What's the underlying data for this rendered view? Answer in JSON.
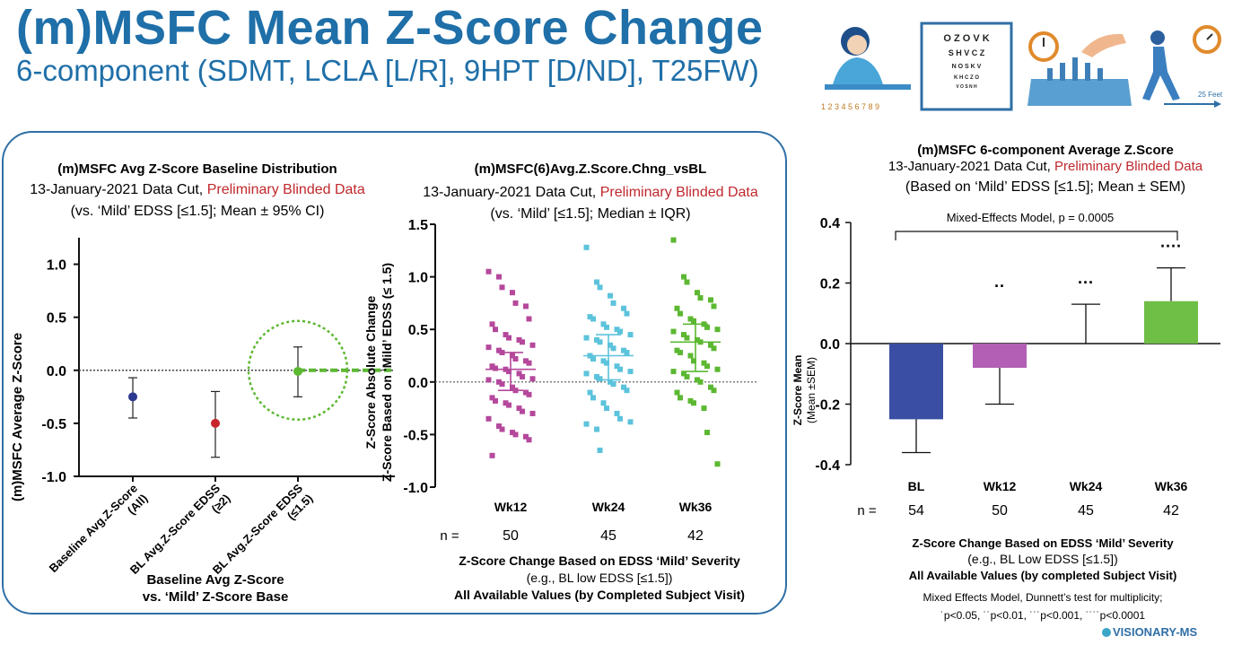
{
  "header": {
    "title": "(m)MSFC Mean Z-Score Change",
    "subtitle": "6-component (SDMT, LCLA [L/R], 9HPT [D/ND], T25FW)"
  },
  "illustration": {
    "eye_chart_rows": [
      "O Z O V K",
      "S H V C Z",
      "N O S K V",
      "K H C Z O",
      "V O S N H"
    ],
    "walk_label": "25 Feet",
    "digit_row": "1 2 3 4 5 6 7 8 9"
  },
  "logo": {
    "text": "VISIONARY-MS"
  },
  "colors": {
    "accent": "#1f6fa8",
    "red_text": "#c0282d",
    "navy": "#2b3990",
    "red": "#c8242c",
    "magenta": "#b5489c",
    "cyan": "#5cc3dc",
    "green": "#5cb832",
    "bar_blue": "#3a4fa3",
    "bar_magenta": "#b25fb5",
    "bar_green": "#6fbe45"
  },
  "chart_data": [
    {
      "id": "baseline",
      "type": "scatter",
      "title": "(m)MSFC Avg Z-Score Baseline Distribution",
      "subtitle_prefix": "13-January-2021 Data Cut, ",
      "subtitle_red": "Preliminary Blinded Data",
      "subtitle2": "(vs. ‘Mild’ EDSS [≤1.5]; Mean ± 95% CI)",
      "ylabel": "(m)MSFC Average Z-Score",
      "xlabel1": "Baseline Avg Z-Score",
      "xlabel2": "vs. ‘Mild’ Z-Score Base",
      "ylim": [
        -1.0,
        1.25
      ],
      "yticks": [
        "1.0",
        "0.5",
        "0.0",
        "-0.5",
        "-1.0"
      ],
      "categories": [
        "Baseline Avg.Z-Score (All)",
        "BL Avg.Z-Score EDSS (≥2)",
        "BL Avg.Z-Score EDSS (≤1.5)"
      ],
      "mean": [
        -0.25,
        -0.5,
        -0.01
      ],
      "ci_low": [
        -0.45,
        -0.82,
        -0.25
      ],
      "ci_high": [
        -0.07,
        -0.2,
        0.22
      ],
      "colors": [
        "#2b3990",
        "#c8242c",
        "#5cb832"
      ]
    },
    {
      "id": "change",
      "type": "scatter",
      "title": "(m)MSFC(6)Avg.Z.Score.Chng_vsBL",
      "subtitle_prefix": "13-January-2021 Data Cut, ",
      "subtitle_red": "Preliminary Blinded Data",
      "subtitle2": "(vs. ‘Mild’ [≤1.5]; Median ± IQR)",
      "ylabel1": "Z-Score Absolute Change",
      "ylabel2": "Z-Score Based on ‘Mild’ EDSS (≤ 1.5)",
      "xlabel1": "Z-Score Change Based on EDSS ‘Mild’ Severity",
      "xlabel2": "(e.g., BL low EDSS [≤1.5])",
      "xlabel3": "All Available Values (by Completed Subject Visit)",
      "ylim": [
        -1.0,
        1.5
      ],
      "yticks": [
        "1.5",
        "1.0",
        "0.5",
        "0.0",
        "-0.5",
        "-1.0"
      ],
      "categories": [
        "Wk12",
        "Wk24",
        "Wk36"
      ],
      "n_label": "n =",
      "n": [
        "50",
        "45",
        "42"
      ],
      "median": [
        0.12,
        0.25,
        0.38
      ],
      "q1": [
        -0.08,
        0.02,
        0.1
      ],
      "q3": [
        0.28,
        0.45,
        0.55
      ],
      "points": [
        [
          1.05,
          1.0,
          0.9,
          0.85,
          0.75,
          0.72,
          0.6,
          0.55,
          0.5,
          0.45,
          0.42,
          0.4,
          0.38,
          0.35,
          0.33,
          0.3,
          0.28,
          0.25,
          0.22,
          0.2,
          0.18,
          0.15,
          0.13,
          0.12,
          0.1,
          0.08,
          0.05,
          0.03,
          0.02,
          0.0,
          -0.02,
          -0.05,
          -0.08,
          -0.1,
          -0.12,
          -0.15,
          -0.18,
          -0.2,
          -0.22,
          -0.25,
          -0.28,
          -0.3,
          -0.35,
          -0.42,
          -0.45,
          -0.48,
          -0.5,
          -0.52,
          -0.55,
          -0.7
        ],
        [
          1.28,
          0.95,
          0.9,
          0.82,
          0.75,
          0.7,
          0.65,
          0.62,
          0.6,
          0.55,
          0.52,
          0.5,
          0.48,
          0.45,
          0.42,
          0.4,
          0.38,
          0.35,
          0.32,
          0.3,
          0.28,
          0.25,
          0.22,
          0.2,
          0.18,
          0.15,
          0.12,
          0.1,
          0.08,
          0.05,
          0.03,
          0.0,
          -0.02,
          -0.05,
          -0.08,
          -0.1,
          -0.15,
          -0.2,
          -0.25,
          -0.3,
          -0.35,
          -0.38,
          -0.4,
          -0.45,
          -0.65
        ],
        [
          1.35,
          1.0,
          0.95,
          0.85,
          0.8,
          0.78,
          0.72,
          0.7,
          0.65,
          0.6,
          0.58,
          0.55,
          0.52,
          0.5,
          0.48,
          0.45,
          0.42,
          0.4,
          0.38,
          0.35,
          0.32,
          0.3,
          0.28,
          0.25,
          0.2,
          0.18,
          0.15,
          0.12,
          0.1,
          0.08,
          0.05,
          0.02,
          0.0,
          -0.05,
          -0.08,
          -0.1,
          -0.15,
          -0.18,
          -0.2,
          -0.25,
          -0.48,
          -0.78
        ]
      ],
      "colors": [
        "#b5489c",
        "#5cc3dc",
        "#5cb832"
      ]
    },
    {
      "id": "bars",
      "type": "bar",
      "title": "(m)MSFC 6-component Average Z.Score",
      "subtitle_prefix": "13-January-2021 Data Cut, ",
      "subtitle_red": "Preliminary Blinded Data",
      "subtitle2": "(Based on ‘Mild’ EDSS [≤1.5]; Mean ± SEM)",
      "annotation": "Mixed-Effects Model, p = 0.0005",
      "ylabel1": "Z-Score Mean",
      "ylabel2": "(Mean ±SEM)",
      "ylim": [
        -0.4,
        0.4
      ],
      "yticks": [
        "0.4",
        "0.2",
        "0.0",
        "-0.2",
        "-0.4"
      ],
      "categories": [
        "BL",
        "Wk12",
        "Wk24",
        "Wk36"
      ],
      "values": [
        -0.25,
        -0.08,
        0.0,
        0.14
      ],
      "err_ends": [
        -0.36,
        -0.2,
        0.13,
        0.25
      ],
      "sig": [
        "",
        "··",
        "···",
        "····"
      ],
      "n_label": "n =",
      "n": [
        "54",
        "50",
        "45",
        "42"
      ],
      "colors": [
        "#3a4fa3",
        "#b25fb5",
        "#ffffff",
        "#6fbe45"
      ],
      "xlabel1": "Z-Score Change Based on EDSS ‘Mild’ Severity",
      "xlabel2": "(e.g., BL Low EDSS [≤1.5])",
      "xlabel3": "All Available Values (by completed Subject Visit)",
      "footnote1": "Mixed Effects Model, Dunnett’s test for multiplicity;",
      "footnote2": "˙p<0.05, ˙˙p<0.01, ˙˙˙p<0.001, ˙˙˙˙p<0.0001"
    }
  ]
}
